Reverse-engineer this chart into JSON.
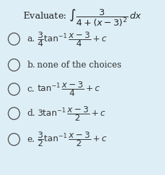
{
  "background_color": "#ddeef6",
  "title": "Evaluate: $\\int \\dfrac{3}{4+(x-3)^2}\\,dx$",
  "options": [
    {
      "label": "a.",
      "text": "$\\dfrac{3}{4}\\tan^{-1}\\dfrac{x-3}{4}+c$"
    },
    {
      "label": "b.",
      "text": "none of the choices"
    },
    {
      "label": "c.",
      "text": "$\\tan^{-1}\\dfrac{x-3}{4}+c$"
    },
    {
      "label": "d.",
      "text": "$3\\tan^{-1}\\dfrac{x-3}{2}+c$"
    },
    {
      "label": "e.",
      "text": "$\\dfrac{3}{2}\\tan^{-1}\\dfrac{x-3}{2}+c$"
    }
  ],
  "circle_color": "#555555",
  "text_color": "#333333",
  "title_color": "#222222"
}
